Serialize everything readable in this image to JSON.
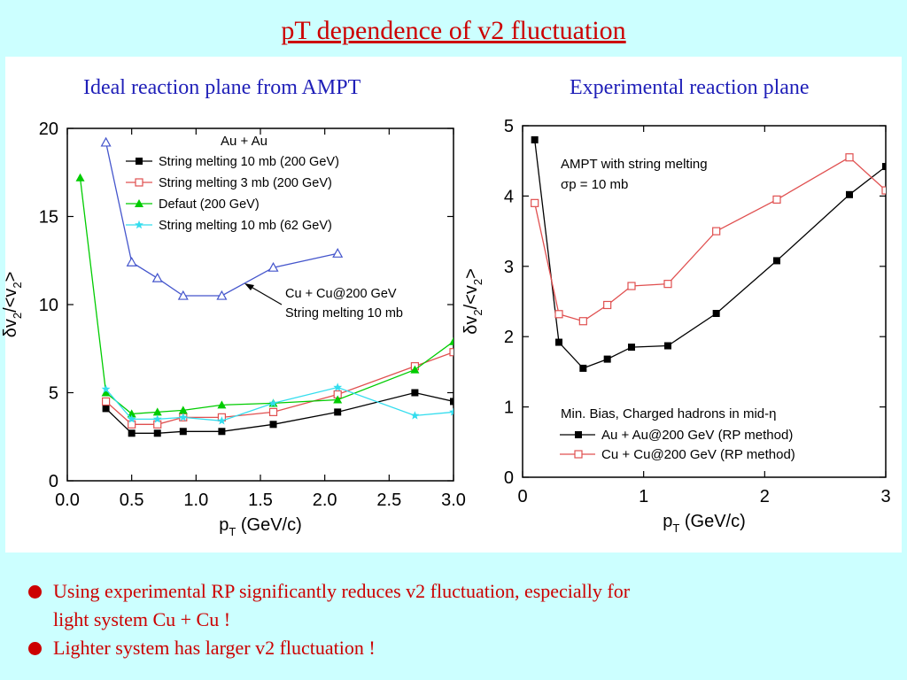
{
  "title": "pT dependence of v2 fluctuation",
  "subtitles": {
    "left": "Ideal reaction plane from AMPT",
    "right": "Experimental reaction plane"
  },
  "bullets": [
    {
      "line1": "Using experimental RP significantly reduces  v2 fluctuation, especially for",
      "line2": "light system Cu + Cu !"
    },
    {
      "line1": "Lighter system has larger v2 fluctuation !",
      "line2": ""
    }
  ],
  "colors": {
    "title": "#cc0000",
    "subtitle": "#1f1fb8",
    "background": "#ccffff"
  },
  "chart_data": [
    {
      "type": "line",
      "xlabel": "pT (GeV/c)",
      "ylabel": "δv2/<v2>",
      "xlim": [
        0,
        3.0
      ],
      "ylim": [
        0,
        20
      ],
      "xticks": [
        "0.0",
        "0.5",
        "1.0",
        "1.5",
        "2.0",
        "2.5",
        "3.0"
      ],
      "yticks": [
        "0",
        "5",
        "10",
        "15",
        "20"
      ],
      "legend_title": "Au + Au",
      "legend_placement": "top-center",
      "series": [
        {
          "name": "String melting 10 mb (200 GeV)",
          "color": "#000000",
          "marker": "square-filled",
          "x": [
            0.3,
            0.5,
            0.7,
            0.9,
            1.2,
            1.6,
            2.1,
            2.7,
            3.0
          ],
          "y": [
            4.1,
            2.7,
            2.7,
            2.8,
            2.8,
            3.2,
            3.9,
            5.0,
            4.5
          ]
        },
        {
          "name": "String melting 3 mb (200 GeV)",
          "color": "#e05050",
          "marker": "square-open",
          "x": [
            0.3,
            0.5,
            0.7,
            0.9,
            1.2,
            1.6,
            2.1,
            2.7,
            3.0
          ],
          "y": [
            4.5,
            3.2,
            3.2,
            3.6,
            3.6,
            3.9,
            4.9,
            6.5,
            7.3
          ]
        },
        {
          "name": "Defaut (200 GeV)",
          "color": "#00cc00",
          "marker": "triangle-filled",
          "x": [
            0.1,
            0.3,
            0.5,
            0.7,
            0.9,
            1.2,
            1.6,
            2.1,
            2.7,
            3.0
          ],
          "y": [
            17.2,
            5.0,
            3.8,
            3.9,
            4.0,
            4.3,
            4.4,
            4.6,
            6.3,
            7.9
          ]
        },
        {
          "name": "String melting 10 mb (62 GeV)",
          "color": "#33ddee",
          "marker": "star",
          "x": [
            0.3,
            0.5,
            0.7,
            0.9,
            1.2,
            1.6,
            2.1,
            2.7,
            3.0
          ],
          "y": [
            5.2,
            3.5,
            3.5,
            3.6,
            3.4,
            4.4,
            5.3,
            3.7,
            3.9
          ]
        },
        {
          "name": "Cu + Cu@200 GeV String melting 10 mb",
          "color": "#4455cc",
          "marker": "triangle-open",
          "x": [
            0.3,
            0.5,
            0.7,
            0.9,
            1.2,
            1.6,
            2.1
          ],
          "y": [
            19.2,
            12.4,
            11.5,
            10.5,
            10.5,
            12.1,
            12.9
          ]
        }
      ],
      "annotation": {
        "line1": "Cu + Cu@200 GeV",
        "line2": "String melting 10 mb"
      }
    },
    {
      "type": "line",
      "xlabel": "pT (GeV/c)",
      "ylabel": "δv2/<v2>",
      "xlim": [
        0,
        3
      ],
      "ylim": [
        0,
        5
      ],
      "xticks": [
        "0",
        "1",
        "2",
        "3"
      ],
      "yticks": [
        "0",
        "1",
        "2",
        "3",
        "4",
        "5"
      ],
      "note_line1": "AMPT with string melting",
      "note_line2": "σp = 10 mb",
      "legend_title": "Min. Bias, Charged hadrons in mid-η",
      "legend_placement": "bottom-center",
      "series": [
        {
          "name": "Au + Au@200 GeV (RP method)",
          "color": "#000000",
          "marker": "square-filled",
          "x": [
            0.1,
            0.3,
            0.5,
            0.7,
            0.9,
            1.2,
            1.6,
            2.1,
            2.7,
            3.0
          ],
          "y": [
            4.8,
            1.92,
            1.55,
            1.68,
            1.85,
            1.87,
            2.33,
            3.08,
            4.02,
            4.42
          ]
        },
        {
          "name": "Cu + Cu@200 GeV (RP method)",
          "color": "#e05050",
          "marker": "square-open",
          "x": [
            0.1,
            0.3,
            0.5,
            0.7,
            0.9,
            1.2,
            1.6,
            2.1,
            2.7,
            3.0
          ],
          "y": [
            3.9,
            2.32,
            2.22,
            2.45,
            2.72,
            2.75,
            3.5,
            3.95,
            4.55,
            4.08
          ]
        }
      ]
    }
  ]
}
